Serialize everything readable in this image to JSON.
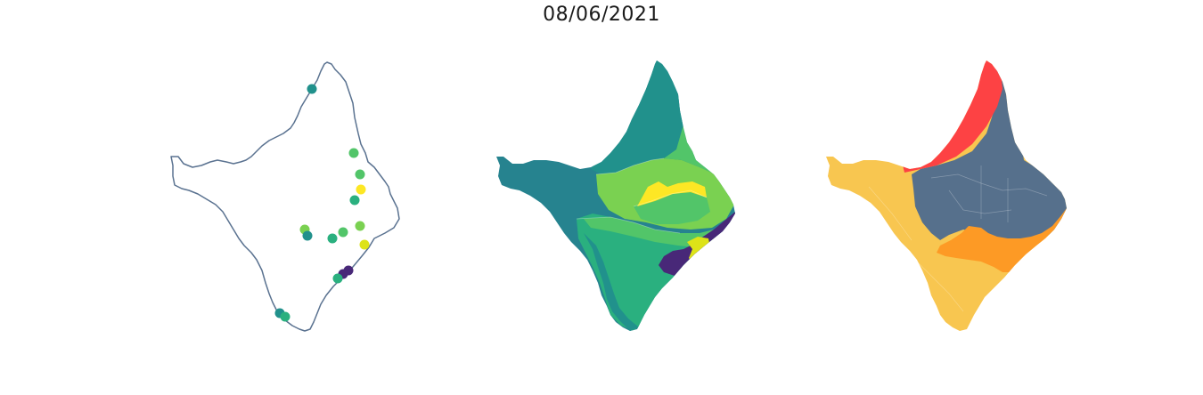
{
  "title": "08/06/2021",
  "colors": {
    "outline": "#5a7290",
    "viridis_teal": "#21918c",
    "viridis_darkteal": "#26838f",
    "viridis_green": "#2ab07f",
    "viridis_lightgreen": "#52c569",
    "viridis_lime": "#7ad151",
    "viridis_yellow": "#fde725",
    "viridis_yellowlime": "#dde318",
    "viridis_purple": "#440154",
    "viridis_indigo": "#482878",
    "region_red": "#fd4244",
    "region_slate": "#56708c",
    "region_gold": "#f8c650",
    "region_orange": "#fd9a25"
  },
  "panels": [
    {
      "type": "point-map"
    },
    {
      "type": "choropleth-viridis"
    },
    {
      "type": "region-categories"
    }
  ]
}
